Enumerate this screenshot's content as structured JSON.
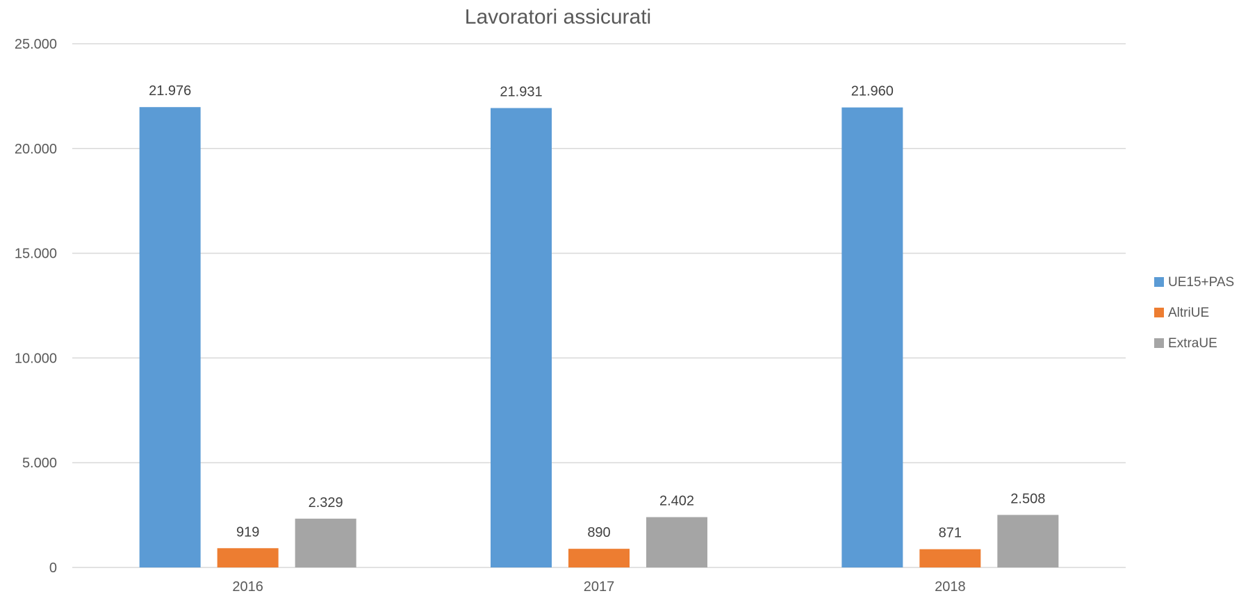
{
  "chart_data": {
    "type": "bar",
    "title": "Lavoratori assicurati",
    "xlabel": "",
    "ylabel": "",
    "categories": [
      "2016",
      "2017",
      "2018"
    ],
    "series": [
      {
        "name": "UE15+PAS",
        "values": [
          21976,
          21931,
          21960
        ],
        "labels": [
          "21.976",
          "21.931",
          "21.960"
        ],
        "color": "#5b9bd5"
      },
      {
        "name": "AltriUE",
        "values": [
          919,
          890,
          871
        ],
        "labels": [
          "919",
          "890",
          "871"
        ],
        "color": "#ed7d31"
      },
      {
        "name": "ExtraUE",
        "values": [
          2329,
          2402,
          2508
        ],
        "labels": [
          "2.329",
          "2.402",
          "2.508"
        ],
        "color": "#a5a5a5"
      }
    ],
    "ylim": [
      0,
      25000
    ],
    "yticks": [
      0,
      5000,
      10000,
      15000,
      20000,
      25000
    ],
    "ytick_labels": [
      "0",
      "5.000",
      "10.000",
      "15.000",
      "20.000",
      "25.000"
    ],
    "grid": true,
    "legend_position": "right"
  }
}
